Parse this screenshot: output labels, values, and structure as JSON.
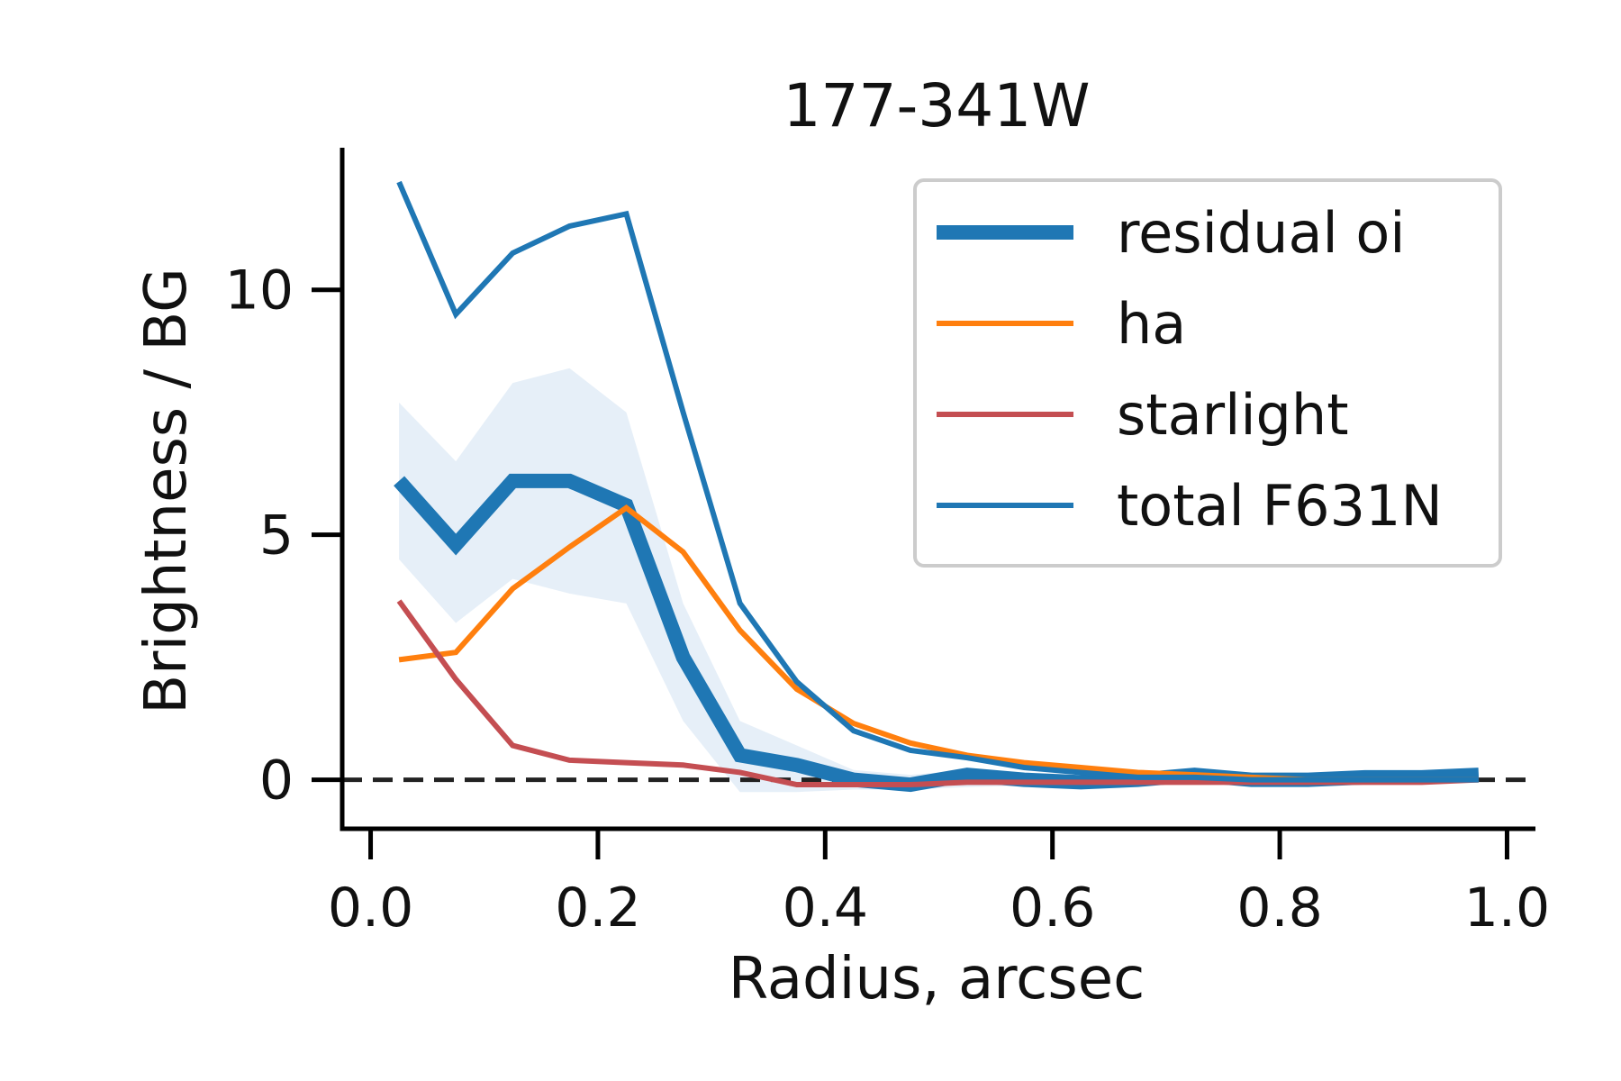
{
  "chart_data": {
    "type": "line",
    "title": "177-341W",
    "xlabel": "Radius, arcsec",
    "ylabel": "Brightness / BG",
    "xlim": [
      -0.025,
      1.025
    ],
    "ylim": [
      -1.0,
      12.9
    ],
    "xticks": [
      {
        "value": 0.0,
        "label": "0.0"
      },
      {
        "value": 0.2,
        "label": "0.2"
      },
      {
        "value": 0.4,
        "label": "0.4"
      },
      {
        "value": 0.6,
        "label": "0.6"
      },
      {
        "value": 0.8,
        "label": "0.8"
      },
      {
        "value": 1.0,
        "label": "1.0"
      }
    ],
    "yticks": [
      {
        "value": 0,
        "label": "0"
      },
      {
        "value": 5,
        "label": "5"
      },
      {
        "value": 10,
        "label": "10"
      }
    ],
    "grid": false,
    "legend_position": "top-right",
    "zero_line": {
      "y": 0,
      "style": "dashed",
      "color": "#222222"
    },
    "x": [
      0.025,
      0.075,
      0.125,
      0.175,
      0.225,
      0.275,
      0.325,
      0.375,
      0.425,
      0.475,
      0.525,
      0.575,
      0.625,
      0.675,
      0.725,
      0.775,
      0.825,
      0.875,
      0.925,
      0.975
    ],
    "band": {
      "series": "residual oi",
      "color": "#dce8f5",
      "lower": [
        4.5,
        3.2,
        4.1,
        3.8,
        3.6,
        1.2,
        -0.25,
        -0.25,
        -0.2,
        -0.2,
        -0.15,
        -0.12,
        -0.1,
        -0.05,
        0.0,
        -0.05,
        -0.05,
        -0.05,
        -0.05,
        0.0
      ],
      "upper": [
        7.7,
        6.5,
        8.1,
        8.4,
        7.5,
        3.6,
        1.2,
        0.7,
        0.2,
        0.1,
        0.2,
        0.1,
        0.05,
        0.1,
        0.15,
        0.1,
        0.1,
        0.1,
        0.1,
        0.15
      ]
    },
    "series": [
      {
        "name": "residual oi",
        "color": "#1f77b4",
        "width": "thick",
        "values": [
          6.1,
          4.8,
          6.1,
          6.1,
          5.6,
          2.5,
          0.5,
          0.3,
          0.0,
          -0.1,
          0.1,
          0.0,
          -0.05,
          0.0,
          0.1,
          0.0,
          0.0,
          0.05,
          0.05,
          0.1
        ]
      },
      {
        "name": "ha",
        "color": "#ff7f0e",
        "width": "normal",
        "values": [
          2.45,
          2.6,
          3.9,
          4.75,
          5.55,
          4.65,
          3.05,
          1.85,
          1.15,
          0.75,
          0.5,
          0.35,
          0.25,
          0.15,
          0.1,
          0.05,
          0.0,
          0.0,
          0.0,
          0.0
        ]
      },
      {
        "name": "starlight",
        "color": "#c44e52",
        "width": "normal",
        "values": [
          3.65,
          2.05,
          0.7,
          0.4,
          0.35,
          0.3,
          0.15,
          -0.1,
          -0.1,
          -0.1,
          -0.05,
          -0.05,
          -0.05,
          -0.05,
          -0.05,
          -0.05,
          -0.05,
          -0.05,
          -0.05,
          0.0
        ]
      },
      {
        "name": "total F631N",
        "color": "#1f77b4",
        "width": "normal",
        "values": [
          12.2,
          9.5,
          10.75,
          11.3,
          11.55,
          7.5,
          3.6,
          2.0,
          1.0,
          0.6,
          0.45,
          0.25,
          0.15,
          0.05,
          0.05,
          0.0,
          0.0,
          0.0,
          0.0,
          0.0
        ]
      }
    ]
  }
}
